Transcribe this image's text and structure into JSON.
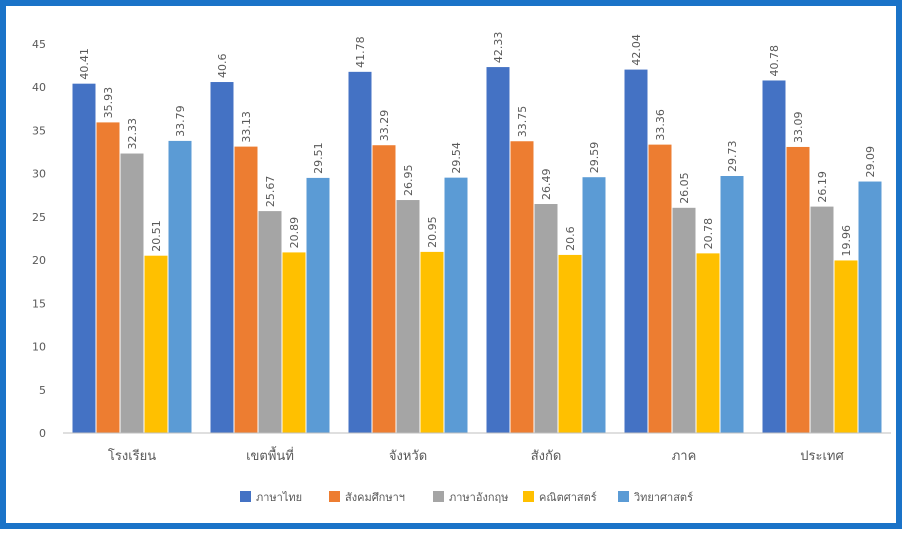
{
  "chart_data": {
    "type": "bar",
    "title": "",
    "xlabel": "",
    "ylabel": "",
    "ylim": [
      0,
      45
    ],
    "ytick_step": 5,
    "grid": false,
    "legend_position": "bottom",
    "categories": [
      "โรงเรียน",
      "เขตพื้นที่",
      "จังหวัด",
      "สังกัด",
      "ภาค",
      "ประเทศ"
    ],
    "series": [
      {
        "name": "ภาษาไทย",
        "color": "#4472c4",
        "values": [
          40.41,
          40.6,
          41.78,
          42.33,
          42.04,
          40.78
        ]
      },
      {
        "name": "สังคมศึกษาฯ",
        "color": "#ed7d31",
        "values": [
          35.93,
          33.13,
          33.29,
          33.75,
          33.36,
          33.09
        ]
      },
      {
        "name": "ภาษาอังกฤษ",
        "color": "#a5a5a5",
        "values": [
          32.33,
          25.67,
          26.95,
          26.49,
          26.05,
          26.19
        ]
      },
      {
        "name": "คณิตศาสตร์",
        "color": "#ffc000",
        "values": [
          20.51,
          20.89,
          20.95,
          20.6,
          20.78,
          19.96
        ]
      },
      {
        "name": "วิทยาศาสตร์",
        "color": "#5b9bd5",
        "values": [
          33.79,
          29.51,
          29.54,
          29.59,
          29.73,
          29.09
        ]
      }
    ],
    "data_labels": [
      [
        "40.41",
        "35.93",
        "32.33",
        "20.51",
        "33.79"
      ],
      [
        "40.6",
        "33.13",
        "25.67",
        "20.89",
        "29.51"
      ],
      [
        "41.78",
        "33.29",
        "26.95",
        "20.95",
        "29.54"
      ],
      [
        "42.33",
        "33.75",
        "26.49",
        "20.6",
        "29.59"
      ],
      [
        "42.04",
        "33.36",
        "26.05",
        "20.78",
        "29.73"
      ],
      [
        "40.78",
        "33.09",
        "26.19",
        "19.96",
        "29.09"
      ]
    ],
    "axis_color": "#bfbfbf"
  }
}
